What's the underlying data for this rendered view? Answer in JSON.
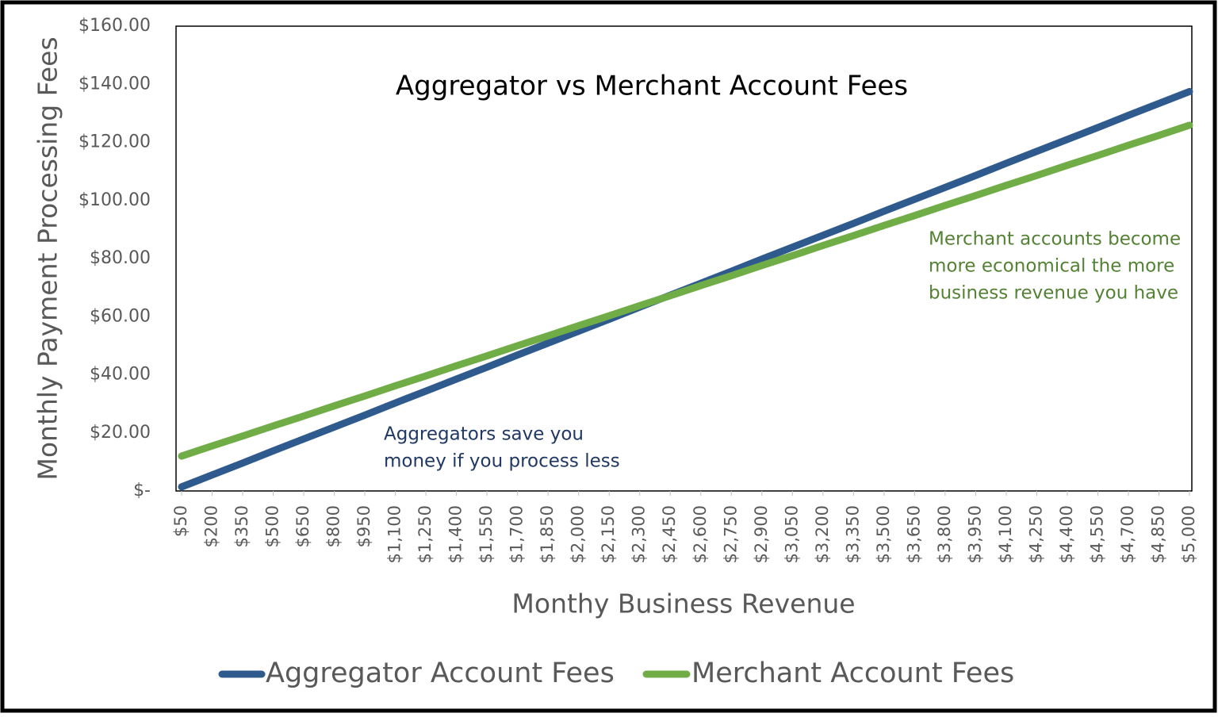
{
  "chart_data": {
    "type": "line",
    "title": "Aggregator vs Merchant Account Fees",
    "x_label": "Monthy Business Revenue",
    "y_label": "Monthly Payment Processing Fees",
    "categories": [
      "$50",
      "$200",
      "$350",
      "$500",
      "$650",
      "$800",
      "$950",
      "$1,100",
      "$1,250",
      "$1,400",
      "$1,550",
      "$1,700",
      "$1,850",
      "$2,000",
      "$2,150",
      "$2,300",
      "$2,450",
      "$2,600",
      "$2,750",
      "$2,900",
      "$3,050",
      "$3,200",
      "$3,350",
      "$3,500",
      "$3,650",
      "$3,800",
      "$3,950",
      "$4,100",
      "$4,250",
      "$4,400",
      "$4,550",
      "$4,700",
      "$4,850",
      "$5,000"
    ],
    "series": [
      {
        "name": "Aggregator Account Fees",
        "color": "#2e5a8e",
        "values": [
          1.4,
          5.5,
          9.6,
          13.8,
          17.9,
          22.0,
          26.1,
          30.3,
          34.4,
          38.5,
          42.6,
          46.8,
          50.9,
          55.0,
          59.1,
          63.3,
          67.4,
          71.5,
          75.6,
          79.8,
          83.9,
          88.0,
          92.1,
          96.3,
          100.4,
          104.5,
          108.6,
          112.8,
          116.9,
          121.0,
          125.1,
          129.3,
          133.4,
          137.5
        ]
      },
      {
        "name": "Merchant Account Fees",
        "color": "#70ad47",
        "values": [
          12.0,
          15.5,
          18.9,
          22.4,
          25.8,
          29.3,
          32.7,
          36.2,
          39.6,
          43.1,
          46.5,
          50.0,
          53.4,
          56.9,
          60.3,
          63.8,
          67.2,
          70.7,
          74.1,
          77.6,
          81.0,
          84.5,
          87.9,
          91.4,
          94.8,
          98.3,
          101.7,
          105.2,
          108.6,
          112.1,
          115.5,
          119.0,
          122.4,
          125.9
        ]
      }
    ],
    "ylim": [
      0,
      160
    ],
    "yticks": [
      {
        "value": 0,
        "label": "$-"
      },
      {
        "value": 20,
        "label": "$20.00"
      },
      {
        "value": 40,
        "label": "$40.00"
      },
      {
        "value": 60,
        "label": "$60.00"
      },
      {
        "value": 80,
        "label": "$80.00"
      },
      {
        "value": 100,
        "label": "$100.00"
      },
      {
        "value": 120,
        "label": "$120.00"
      },
      {
        "value": 140,
        "label": "$140.00"
      },
      {
        "value": 160,
        "label": "$160.00"
      }
    ],
    "grid": false,
    "legend": "bottom",
    "annotations": [
      {
        "lines": [
          "Aggregators save you",
          "money if you process less"
        ],
        "color": "#203864"
      },
      {
        "lines": [
          "Merchant accounts become",
          "more economical the more",
          "business revenue you have"
        ],
        "color": "#548235"
      }
    ]
  }
}
